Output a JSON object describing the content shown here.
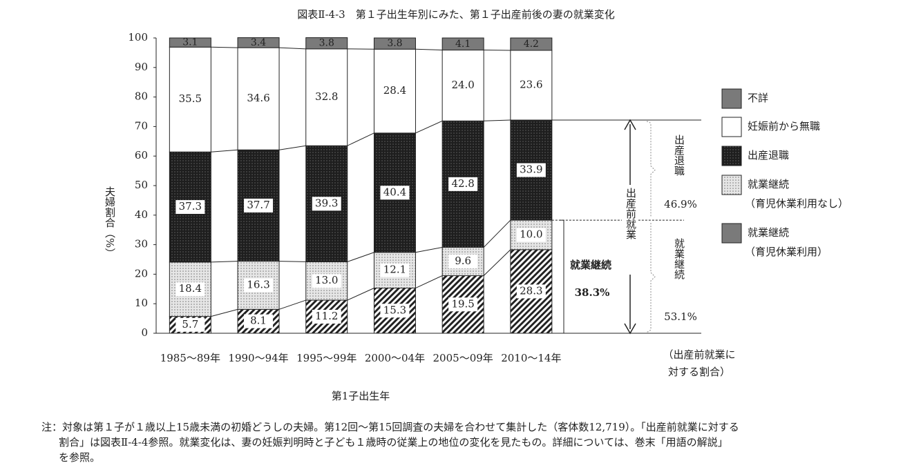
{
  "chart_data": {
    "type": "stacked_bar",
    "title": "図表Ⅱ-4-3　第１子出生年別にみた、第１子出産前後の妻の就業変化",
    "y_label": "夫婦割合（%）",
    "x_label": "第1子出生年",
    "categories": [
      "1985～89年",
      "1990～94年",
      "1995～99年",
      "2000～04年",
      "2005～09年",
      "2010～14年"
    ],
    "ylim": [
      0,
      100
    ],
    "yticks": [
      0,
      10,
      20,
      30,
      40,
      50,
      60,
      70,
      80,
      90,
      100
    ],
    "series": [
      {
        "name": "就業継続",
        "note": "（育児休業利用）",
        "color": "#ffffff",
        "pattern": "hatch",
        "values": [
          5.7,
          8.1,
          11.2,
          15.3,
          19.5,
          28.3
        ],
        "value_labels": [
          "5.7",
          "8.1",
          "11.2",
          "15.3",
          "19.5",
          "28.3"
        ]
      },
      {
        "name": "就業継続",
        "note": "（育児休業利用なし）",
        "color": "#e6e6e6",
        "pattern": "dots",
        "values": [
          18.4,
          16.3,
          13.0,
          12.1,
          9.6,
          10.0
        ],
        "value_labels": [
          "18.4",
          "16.3",
          "13.0",
          "12.1",
          "9.6",
          "10.0"
        ]
      },
      {
        "name": "出産退職",
        "color": "#1e1e1e",
        "pattern": "darkdots",
        "values": [
          37.3,
          37.7,
          39.3,
          40.4,
          42.8,
          33.9
        ],
        "value_labels": [
          "37.3",
          "37.7",
          "39.3",
          "40.4",
          "42.8",
          "33.9"
        ]
      },
      {
        "name": "妊娠前から無職",
        "color": "#ffffff",
        "pattern": "none",
        "values": [
          35.5,
          34.6,
          32.8,
          28.4,
          24.0,
          23.6
        ],
        "value_labels": [
          "35.5",
          "34.6",
          "32.8",
          "28.4",
          "24.0",
          "23.6"
        ]
      },
      {
        "name": "不詳",
        "color": "#7a7a7a",
        "pattern": "none",
        "values": [
          3.1,
          3.4,
          3.8,
          3.8,
          4.1,
          4.2
        ],
        "value_labels": [
          "3.1",
          "3.4",
          "3.8",
          "3.8",
          "4.1",
          "4.2"
        ]
      }
    ],
    "annotations": {
      "pre_birth_employment": "出産前就業",
      "quit_label": "出産退職",
      "quit_pct": "46.9%",
      "continue_label": "就業継続",
      "continue_pct": "53.1%",
      "bar_continue_label": "就業継続",
      "bar_continue_pct": "38.3%",
      "ratio_note": [
        "（出産前就業に",
        "対する割合）"
      ]
    },
    "notes": [
      "注：対象は第１子が１歳以上15歳未満の初婚どうしの夫婦。第12回～第15回調査の夫婦を合わせて集計した（客体数12,719）。「出産前就業に対する",
      "割合」は図表Ⅱ-4-4参照。就業変化は、妻の妊娠判明時と子ども１歳時の従業上の地位の変化を見たもの。詳細については、巻末「用語の解説」",
      "を参照。"
    ]
  }
}
